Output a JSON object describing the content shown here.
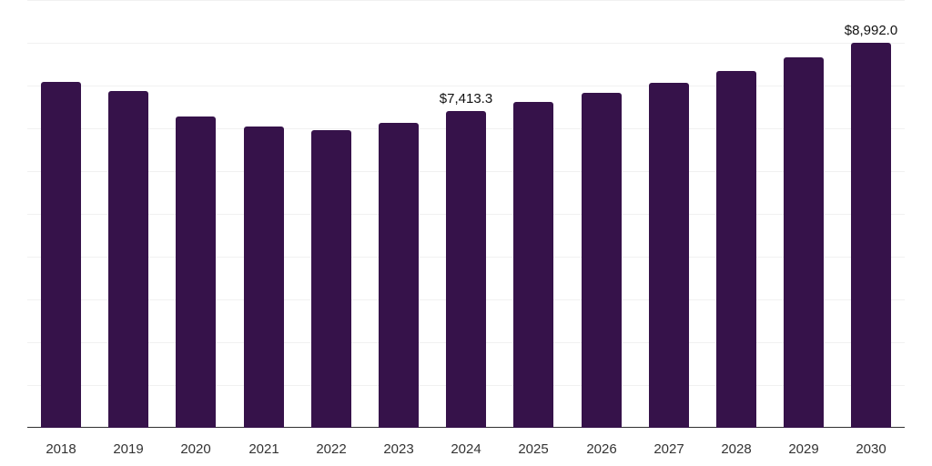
{
  "chart_data": {
    "type": "bar",
    "title": "",
    "xlabel": "",
    "ylabel": "",
    "categories": [
      "2018",
      "2019",
      "2020",
      "2021",
      "2022",
      "2023",
      "2024",
      "2025",
      "2026",
      "2027",
      "2028",
      "2029",
      "2030"
    ],
    "values": [
      8076,
      7863,
      7266,
      7053,
      6968,
      7138,
      7413.3,
      7607,
      7820,
      8055,
      8331,
      8651,
      8992.0
    ],
    "data_labels": [
      {
        "category": "2024",
        "text": "$7,413.3"
      },
      {
        "category": "2030",
        "text": "$8,992.0"
      }
    ],
    "ylim": [
      0,
      10000
    ],
    "grid": true,
    "grid_step": 1000,
    "y_tick_labels_visible": false,
    "legend": null,
    "bar_color": "#36124a"
  }
}
